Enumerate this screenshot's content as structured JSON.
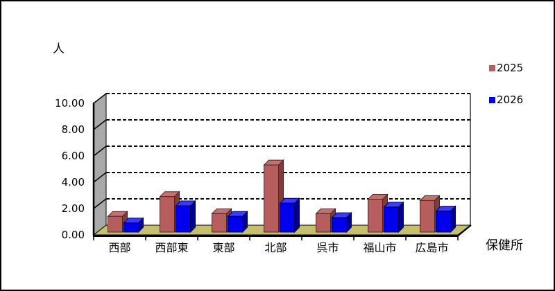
{
  "unit_label": "人",
  "category_axis_title": "保健所",
  "legend": {
    "items": [
      {
        "label": "2025"
      },
      {
        "label": "2026"
      }
    ]
  },
  "chart_data": {
    "type": "bar",
    "projection": "3d",
    "title": "",
    "value_axis_unit": "人",
    "category_axis_label": "保健所",
    "categories": [
      "西部",
      "西部東",
      "東部",
      "北部",
      "呉市",
      "福山市",
      "広島市"
    ],
    "series": [
      {
        "name": "2025",
        "values": [
          1.2,
          2.7,
          1.4,
          5.1,
          1.4,
          2.5,
          2.4
        ],
        "color": "#b25f5f",
        "color_front": "#b55e5d",
        "color_top": "#c17170",
        "color_side": "#7e3c3c",
        "outline": "#4a2525"
      },
      {
        "name": "2026",
        "values": [
          0.7,
          2.0,
          1.2,
          2.2,
          1.1,
          1.9,
          1.6
        ],
        "color": "#0000ff",
        "color_front": "#0000ee",
        "color_top": "#3a3aff",
        "color_side": "#000095",
        "outline": "#000050"
      }
    ],
    "ylim": [
      0,
      10
    ],
    "ytick_step": 2,
    "ytick_labels": [
      "0.00",
      "2.00",
      "4.00",
      "6.00",
      "8.00",
      "10.00"
    ],
    "grid": "dashed",
    "legend_position": "right",
    "wall_color": "#a9a9a9",
    "floor_color": "#c6bf6e",
    "line_color": "#000000",
    "background": "#ffffff"
  }
}
